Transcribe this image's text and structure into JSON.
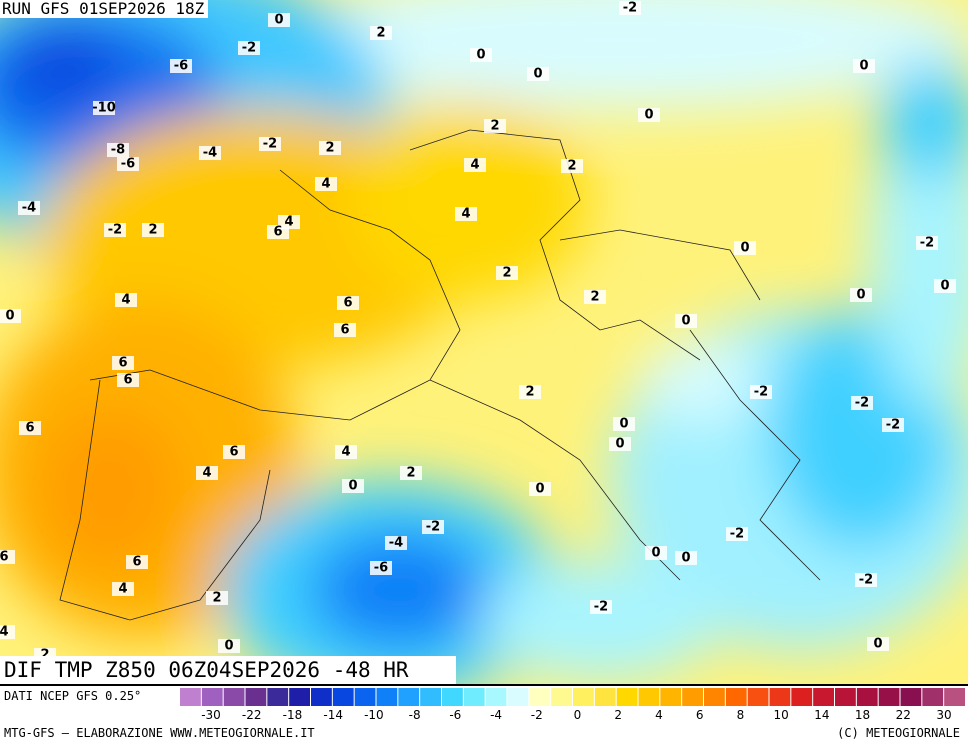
{
  "run_title": "RUN GFS 01SEP2026 18Z",
  "map_title": "DIF TMP Z850 06Z04SEP2026 -48 HR",
  "source": "DATI NCEP GFS 0.25°",
  "footer_left": "MTG-GFS — ELABORAZIONE WWW.METEOGIORNALE.IT",
  "footer_right": "(C) METEOGIORNALE",
  "map_labels": [
    0,
    -2,
    2,
    -2,
    0,
    0,
    -6,
    0,
    -10,
    0,
    2,
    -8,
    -6,
    -4,
    -2,
    2,
    2,
    4,
    4,
    -4,
    4,
    4,
    6,
    -2,
    2,
    0,
    -2,
    2,
    0,
    0,
    2,
    4,
    6,
    0,
    6,
    0,
    6,
    6,
    2,
    -2,
    -2,
    6,
    0,
    -2,
    0,
    6,
    4,
    4,
    2,
    0,
    0,
    -2,
    -2,
    -4,
    0,
    0,
    6,
    6,
    -6,
    -2,
    4,
    2,
    -2,
    4,
    0,
    0,
    2
  ],
  "colorbar": {
    "ticks": [
      -30,
      -22,
      -18,
      -14,
      -10,
      -8,
      -6,
      -4,
      -2,
      0,
      2,
      4,
      6,
      8,
      10,
      14,
      18,
      22,
      30
    ],
    "colors": [
      "#c080d0",
      "#a060c0",
      "#8a4aa8",
      "#6a3090",
      "#3a2a9a",
      "#1e1ea8",
      "#0f2fc8",
      "#0848e0",
      "#0a64f0",
      "#1080f8",
      "#20a0ff",
      "#30bcff",
      "#40d8ff",
      "#70ecff",
      "#a8f8ff",
      "#d8fcff",
      "#ffffc0",
      "#fffa90",
      "#fff060",
      "#ffe440",
      "#ffd800",
      "#ffc800",
      "#ffb400",
      "#ff9c00",
      "#ff8400",
      "#ff6800",
      "#f85010",
      "#ec3818",
      "#dc2020",
      "#c81830",
      "#b81438",
      "#a81040",
      "#981048",
      "#881050",
      "#a0306a",
      "#b85080"
    ]
  }
}
